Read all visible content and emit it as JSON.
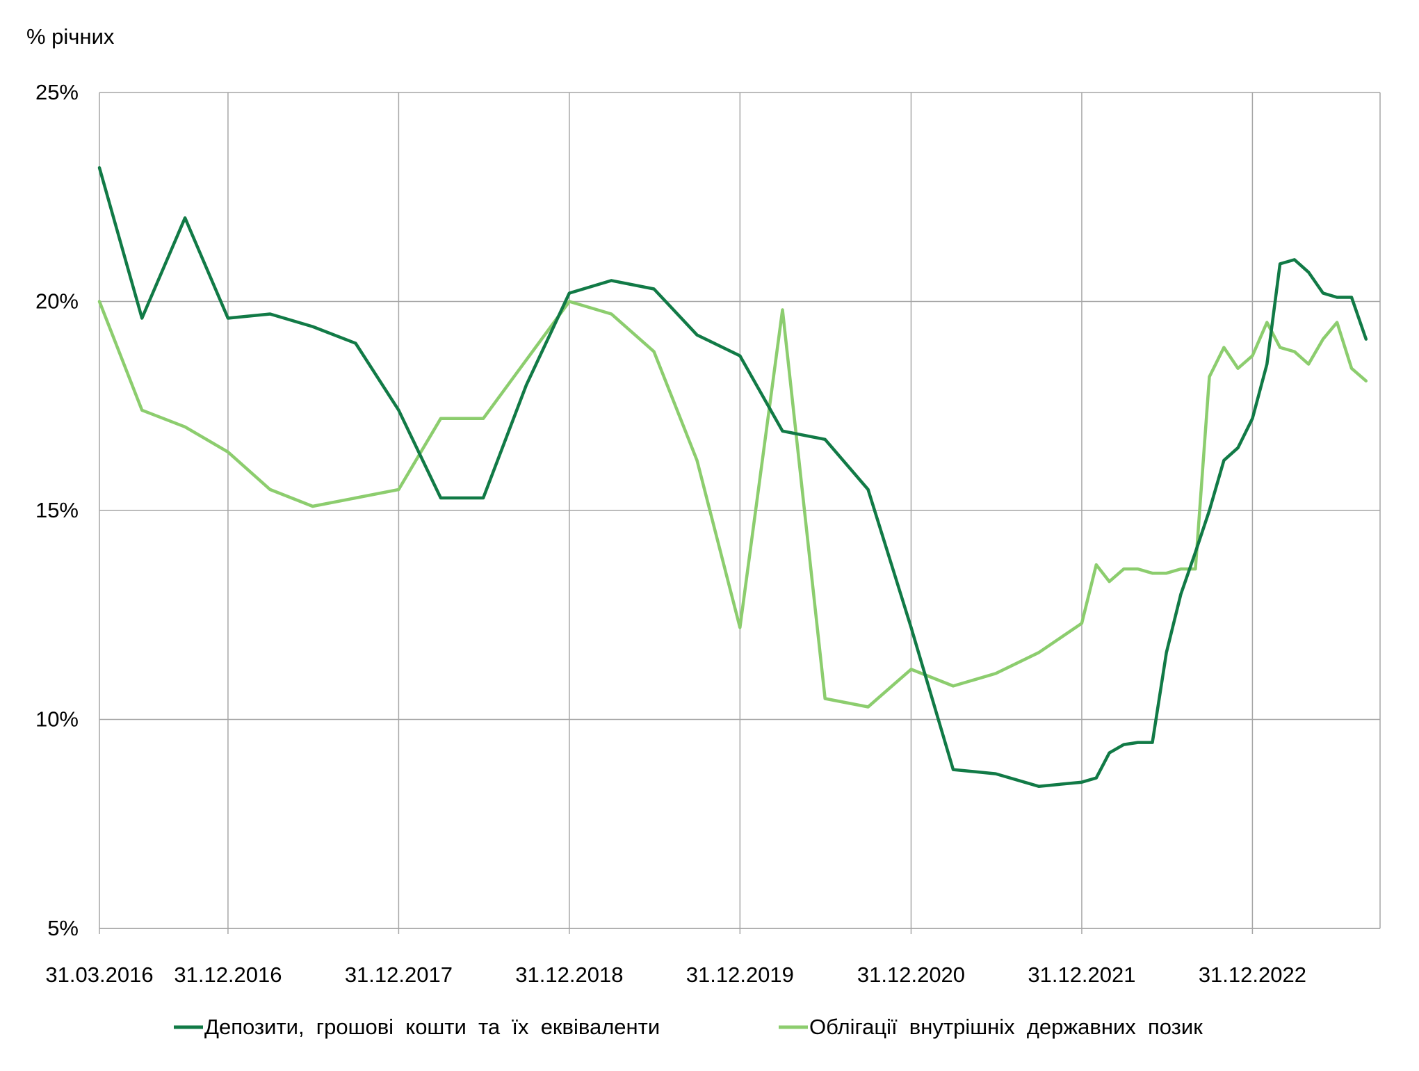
{
  "chart_data": {
    "type": "line",
    "ylabel": "% річних",
    "ylim": [
      5,
      25
    ],
    "yticks": [
      5,
      10,
      15,
      20,
      25
    ],
    "ytick_labels": [
      "5%",
      "10%",
      "15%",
      "20%",
      "25%"
    ],
    "xlim": [
      "2016-03-31",
      "2023-09-30"
    ],
    "xticks": [
      "2016-03-31",
      "2016-12-31",
      "2017-12-31",
      "2018-12-31",
      "2019-12-31",
      "2020-12-31",
      "2021-12-31",
      "2022-12-31"
    ],
    "xtick_labels": [
      "31.03.2016",
      "31.12.2016",
      "31.12.2017",
      "31.12.2018",
      "31.12.2019",
      "31.12.2020",
      "31.12.2021",
      "31.12.2022"
    ],
    "grid": true,
    "legend_position": "bottom",
    "series": [
      {
        "name": "Депозити,  грошові  кошти  та  їх  еквіваленти",
        "color": "#117a46",
        "points": [
          [
            "2016-03-31",
            23.2
          ],
          [
            "2016-06-30",
            19.6
          ],
          [
            "2016-09-30",
            22.0
          ],
          [
            "2016-12-31",
            19.6
          ],
          [
            "2017-03-31",
            19.7
          ],
          [
            "2017-06-30",
            19.4
          ],
          [
            "2017-09-30",
            19.0
          ],
          [
            "2017-12-31",
            17.4
          ],
          [
            "2018-03-31",
            15.3
          ],
          [
            "2018-06-30",
            15.3
          ],
          [
            "2018-09-30",
            18.0
          ],
          [
            "2018-12-31",
            20.2
          ],
          [
            "2019-03-31",
            20.5
          ],
          [
            "2019-06-30",
            20.3
          ],
          [
            "2019-09-30",
            19.2
          ],
          [
            "2019-12-31",
            18.7
          ],
          [
            "2020-03-31",
            16.9
          ],
          [
            "2020-06-30",
            16.7
          ],
          [
            "2020-09-30",
            15.5
          ],
          [
            "2020-12-31",
            12.2
          ],
          [
            "2021-03-31",
            8.8
          ],
          [
            "2021-06-30",
            8.7
          ],
          [
            "2021-09-30",
            8.4
          ],
          [
            "2021-12-31",
            8.5
          ],
          [
            "2022-01-31",
            8.6
          ],
          [
            "2022-02-28",
            9.2
          ],
          [
            "2022-03-31",
            9.4
          ],
          [
            "2022-04-30",
            9.45
          ],
          [
            "2022-05-31",
            9.45
          ],
          [
            "2022-06-30",
            11.6
          ],
          [
            "2022-07-31",
            13.0
          ],
          [
            "2022-08-31",
            14.0
          ],
          [
            "2022-09-30",
            15.0
          ],
          [
            "2022-10-31",
            16.2
          ],
          [
            "2022-11-30",
            16.5
          ],
          [
            "2022-12-31",
            17.2
          ],
          [
            "2023-01-31",
            18.5
          ],
          [
            "2023-02-28",
            20.9
          ],
          [
            "2023-03-31",
            21.0
          ],
          [
            "2023-04-30",
            20.7
          ],
          [
            "2023-05-31",
            20.2
          ],
          [
            "2023-06-30",
            20.1
          ],
          [
            "2023-07-31",
            20.1
          ],
          [
            "2023-08-31",
            19.1
          ]
        ]
      },
      {
        "name": "Облігації  внутрішніх  державних  позик",
        "color": "#8ccd6e",
        "points": [
          [
            "2016-03-31",
            20.0
          ],
          [
            "2016-06-30",
            17.4
          ],
          [
            "2016-09-30",
            17.0
          ],
          [
            "2016-12-31",
            16.4
          ],
          [
            "2017-03-31",
            15.5
          ],
          [
            "2017-06-30",
            15.1
          ],
          [
            "2017-09-30",
            15.3
          ],
          [
            "2017-12-31",
            15.5
          ],
          [
            "2018-03-31",
            17.2
          ],
          [
            "2018-06-30",
            17.2
          ],
          [
            "2018-09-30",
            18.6
          ],
          [
            "2018-12-31",
            20.0
          ],
          [
            "2019-03-31",
            19.7
          ],
          [
            "2019-06-30",
            18.8
          ],
          [
            "2019-09-30",
            16.2
          ],
          [
            "2019-12-31",
            12.2
          ],
          [
            "2020-03-31",
            19.8
          ],
          [
            "2020-06-30",
            10.5
          ],
          [
            "2020-09-30",
            10.3
          ],
          [
            "2020-12-31",
            11.2
          ],
          [
            "2021-03-31",
            10.8
          ],
          [
            "2021-06-30",
            11.1
          ],
          [
            "2021-09-30",
            11.6
          ],
          [
            "2021-12-31",
            12.3
          ],
          [
            "2022-01-31",
            13.7
          ],
          [
            "2022-02-28",
            13.3
          ],
          [
            "2022-03-31",
            13.6
          ],
          [
            "2022-04-30",
            13.6
          ],
          [
            "2022-05-31",
            13.5
          ],
          [
            "2022-06-30",
            13.5
          ],
          [
            "2022-07-31",
            13.6
          ],
          [
            "2022-08-31",
            13.6
          ],
          [
            "2022-09-30",
            18.2
          ],
          [
            "2022-10-31",
            18.9
          ],
          [
            "2022-11-30",
            18.4
          ],
          [
            "2022-12-31",
            18.7
          ],
          [
            "2023-01-31",
            19.5
          ],
          [
            "2023-02-28",
            18.9
          ],
          [
            "2023-03-31",
            18.8
          ],
          [
            "2023-04-30",
            18.5
          ],
          [
            "2023-05-31",
            19.1
          ],
          [
            "2023-06-30",
            19.5
          ],
          [
            "2023-07-31",
            18.4
          ],
          [
            "2023-08-31",
            18.1
          ]
        ]
      }
    ]
  }
}
